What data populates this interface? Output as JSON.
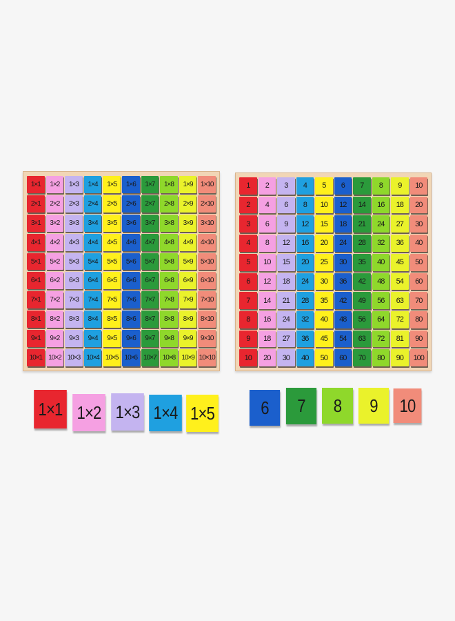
{
  "colors": [
    "#e8262f",
    "#f5a0e2",
    "#c4b4f0",
    "#1fa0e0",
    "#fff01c",
    "#1b5fcc",
    "#2b9a3b",
    "#8fd82b",
    "#eaf22b",
    "#f18c7a"
  ],
  "background": "#f6f6f6",
  "left_board": [
    [
      "1×1",
      "1×2",
      "1×3",
      "1×4",
      "1×5",
      "1×6",
      "1×7",
      "1×8",
      "1×9",
      "1×10"
    ],
    [
      "2×1",
      "2×2",
      "2×3",
      "2×4",
      "2×5",
      "2×6",
      "2×7",
      "2×8",
      "2×9",
      "2×10"
    ],
    [
      "3×1",
      "3×2",
      "3×3",
      "3×4",
      "3×5",
      "3×6",
      "3×7",
      "3×8",
      "3×9",
      "3×10"
    ],
    [
      "4×1",
      "4×2",
      "4×3",
      "4×4",
      "4×5",
      "4×6",
      "4×7",
      "4×8",
      "4×9",
      "4×10"
    ],
    [
      "5×1",
      "5×2",
      "5×3",
      "5×4",
      "5×5",
      "5×6",
      "5×7",
      "5×8",
      "5×9",
      "5×10"
    ],
    [
      "6×1",
      "6×2",
      "6×3",
      "6×4",
      "6×5",
      "6×6",
      "6×7",
      "6×8",
      "6×9",
      "6×10"
    ],
    [
      "7×1",
      "7×2",
      "7×3",
      "7×4",
      "7×5",
      "7×6",
      "7×7",
      "7×8",
      "7×9",
      "7×10"
    ],
    [
      "8×1",
      "8×2",
      "8×3",
      "8×4",
      "8×5",
      "8×6",
      "8×7",
      "8×8",
      "8×9",
      "8×10"
    ],
    [
      "9×1",
      "9×2",
      "9×3",
      "9×4",
      "9×5",
      "9×6",
      "9×7",
      "9×8",
      "9×9",
      "9×10"
    ],
    [
      "10×1",
      "10×2",
      "10×3",
      "10×4",
      "10×5",
      "10×6",
      "10×7",
      "10×8",
      "10×9",
      "10×10"
    ]
  ],
  "right_board": [
    [
      "1",
      "2",
      "3",
      "4",
      "5",
      "6",
      "7",
      "8",
      "9",
      "10"
    ],
    [
      "2",
      "4",
      "6",
      "8",
      "10",
      "12",
      "14",
      "16",
      "18",
      "20"
    ],
    [
      "3",
      "6",
      "9",
      "12",
      "15",
      "18",
      "21",
      "24",
      "27",
      "30"
    ],
    [
      "4",
      "8",
      "12",
      "16",
      "20",
      "24",
      "28",
      "32",
      "36",
      "40"
    ],
    [
      "5",
      "10",
      "15",
      "20",
      "25",
      "30",
      "35",
      "40",
      "45",
      "50"
    ],
    [
      "6",
      "12",
      "18",
      "24",
      "30",
      "36",
      "42",
      "48",
      "54",
      "60"
    ],
    [
      "7",
      "14",
      "21",
      "28",
      "35",
      "42",
      "49",
      "56",
      "63",
      "70"
    ],
    [
      "8",
      "16",
      "24",
      "32",
      "40",
      "48",
      "56",
      "64",
      "72",
      "80"
    ],
    [
      "9",
      "18",
      "27",
      "36",
      "45",
      "54",
      "63",
      "72",
      "81",
      "90"
    ],
    [
      "10",
      "20",
      "30",
      "40",
      "50",
      "60",
      "70",
      "80",
      "90",
      "100"
    ]
  ],
  "loose_left": [
    "1×1",
    "1×2",
    "1×3",
    "1×4",
    "1×5"
  ],
  "loose_right": [
    "6",
    "7",
    "8",
    "9",
    "10"
  ]
}
